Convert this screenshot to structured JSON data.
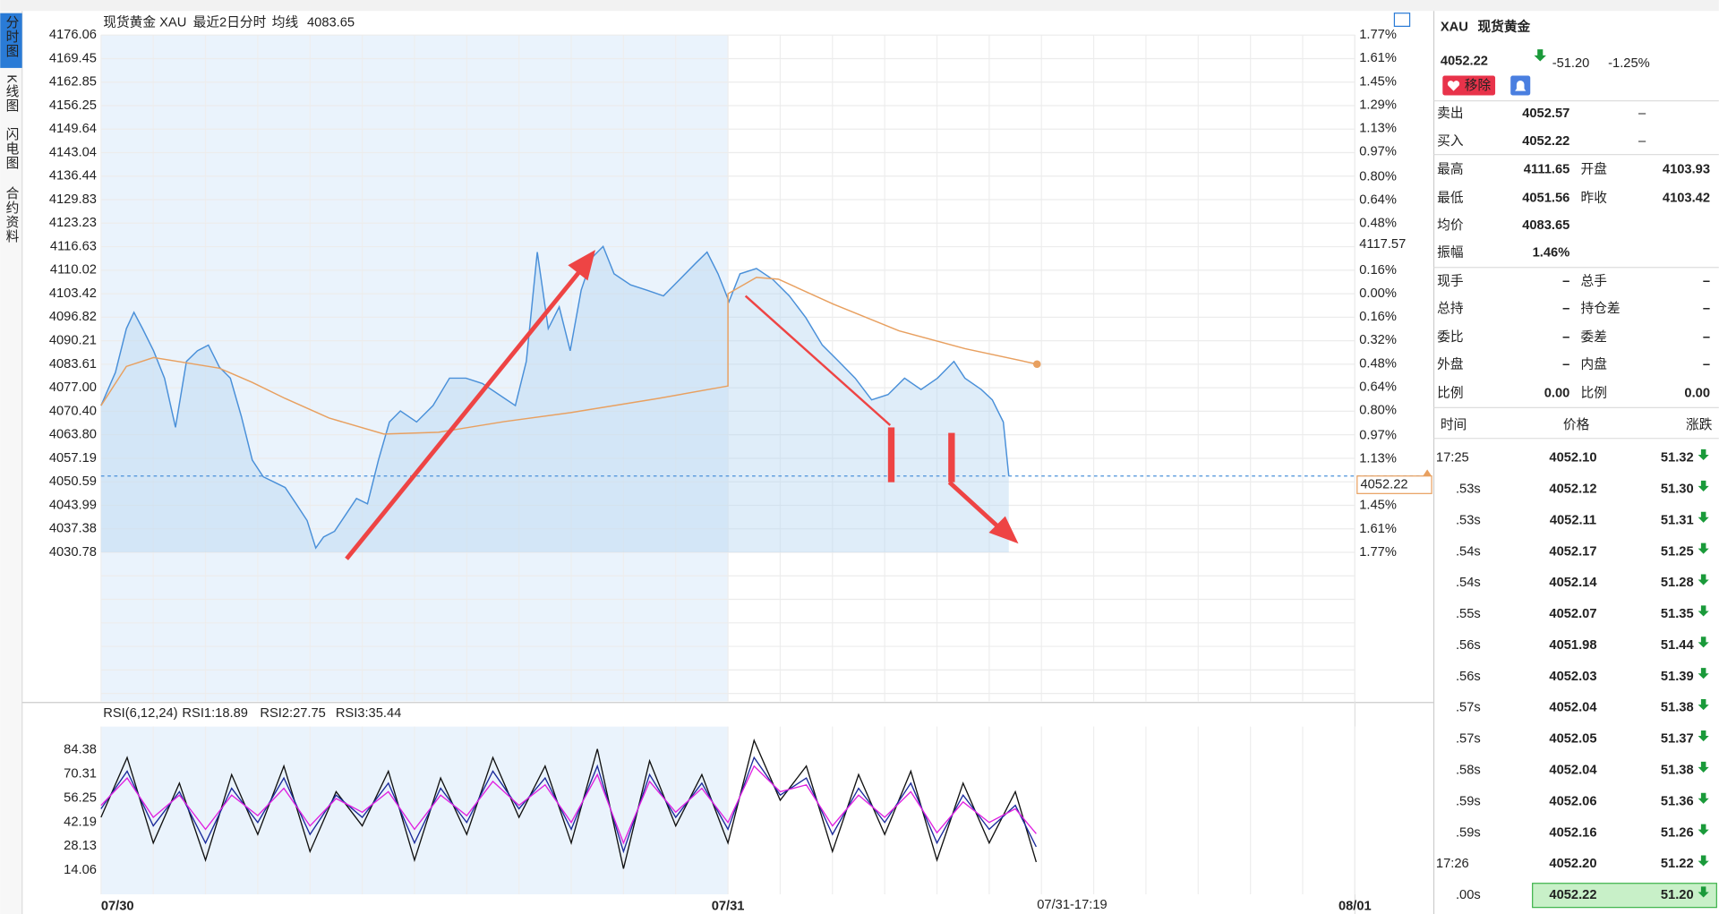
{
  "tabs": [
    "分时图",
    "K线图",
    "闪电图",
    "合约资料"
  ],
  "chart_data": [
    {
      "type": "line",
      "title": "现货黄金 XAU",
      "series": [
        {
          "name": "最近2日分时",
          "color": "#4a90d9",
          "x": [
            0,
            0.55,
            0.97,
            1.26,
            1.59,
            2.01,
            2.43,
            2.85,
            3.27,
            3.69,
            4.11,
            4.53,
            4.95,
            5.37,
            5.79,
            6.21,
            6.63,
            7.05,
            7.47,
            7.89,
            8.22,
            8.52,
            8.94,
            9.36,
            9.78,
            10.2,
            10.62,
            11.04,
            11.46,
            12.08,
            12.71,
            13.34,
            13.97,
            14.6,
            15.23,
            15.86,
            16.28,
            16.7,
            17.12,
            17.54,
            17.96,
            18.38,
            18.8,
            19.22,
            19.64,
            20.27,
            20.9,
            21.53,
            22.15,
            22.78,
            23.2,
            23.62,
            24.04,
            24.46,
            25.09,
            25.72,
            26.35,
            26.98,
            27.61,
            28.24,
            28.87,
            29.5,
            30.13,
            30.76,
            31.39,
            32.02,
            32.65,
            33.07,
            33.7,
            34.12,
            34.54,
            34.75
          ],
          "values": [
            4072.0,
            4081.3,
            4093.6,
            4098.2,
            4093.6,
            4087.4,
            4079.7,
            4065.9,
            4084.4,
            4087.4,
            4089.0,
            4082.8,
            4079.7,
            4069.0,
            4056.7,
            4052.0,
            4050.5,
            4049.0,
            4044.4,
            4039.7,
            4032.0,
            4035.1,
            4036.7,
            4041.3,
            4045.9,
            4044.4,
            4056.7,
            4067.4,
            4070.5,
            4067.4,
            4072.0,
            4079.7,
            4079.7,
            4078.2,
            4075.1,
            4072.0,
            4084.4,
            4115.1,
            4093.6,
            4099.7,
            4087.4,
            4104.4,
            4113.6,
            4116.7,
            4109.0,
            4105.9,
            4104.4,
            4102.8,
            4107.4,
            4112.1,
            4115.1,
            4109.0,
            4101.2,
            4109.0,
            4110.5,
            4107.4,
            4102.8,
            4096.7,
            4089.0,
            4084.4,
            4079.7,
            4073.6,
            4075.1,
            4079.7,
            4076.5,
            4079.7,
            4084.4,
            4079.7,
            4076.5,
            4073.6,
            4067.4,
            4052.2
          ]
        },
        {
          "name": "均线",
          "color": "#e8a060",
          "legend_value": "4083.65",
          "x": [
            0,
            0.97,
            2.01,
            3.27,
            4.53,
            5.79,
            7.05,
            8.73,
            10.83,
            12.92,
            15.44,
            17.96,
            21.32,
            24.0,
            24.0,
            25.09,
            25.93,
            28.03,
            30.55,
            33.07,
            35.83
          ],
          "values": [
            4072.0,
            4083.0,
            4085.5,
            4084.0,
            4082.5,
            4078.5,
            4074.0,
            4068.5,
            4064.0,
            4064.5,
            4067.5,
            4070.0,
            4074.0,
            4077.5,
            4103.4,
            4108.0,
            4107.5,
            4100.5,
            4093.0,
            4088.0,
            4083.65
          ]
        }
      ],
      "xlim": [
        0,
        48
      ],
      "xticks": [
        {
          "value": 0,
          "label": "07/30"
        },
        {
          "value": 24,
          "label": "07/31"
        },
        {
          "value": 48,
          "label": "08/01"
        }
      ],
      "ylim": [
        4030.78,
        4176.06
      ],
      "yticks": [
        4176.06,
        4169.45,
        4162.85,
        4156.25,
        4149.64,
        4143.04,
        4136.44,
        4129.83,
        4123.23,
        4116.63,
        4110.02,
        4103.42,
        4096.82,
        4090.21,
        4083.61,
        {
          "value": 4077,
          "label": "4077.00"
        },
        {
          "value": 4070.4,
          "label": "4070.40"
        },
        {
          "value": 4063.8,
          "label": "4063.80"
        },
        4057.19,
        4050.59,
        4043.99,
        4037.38,
        4030.78
      ],
      "y2lim": [
        -1.77,
        1.77
      ],
      "y2ticks": [
        {
          "value": 1.77,
          "label": "1.77%"
        },
        {
          "value": 1.61,
          "label": "1.61%"
        },
        {
          "value": 1.45,
          "label": "1.45%"
        },
        {
          "value": 1.29,
          "label": "1.29%"
        },
        {
          "value": 1.13,
          "label": "1.13%"
        },
        {
          "value": 0.97,
          "label": "0.97%"
        },
        {
          "value": 0.8,
          "label": "0.80%"
        },
        {
          "value": 0.64,
          "label": "0.64%"
        },
        {
          "value": 0.48,
          "label": "0.48%"
        },
        {
          "value": 0.32,
          "label": "0.32%"
        },
        {
          "value": 0.16,
          "label": "0.16%"
        },
        {
          "value": 0,
          "label": "0.00%"
        },
        {
          "value": -0.16,
          "label": "0.16%"
        },
        {
          "value": -0.32,
          "label": "0.32%"
        },
        {
          "value": -0.48,
          "label": "0.48%"
        },
        {
          "value": -0.64,
          "label": "0.64%"
        },
        {
          "value": -0.8,
          "label": "0.80%"
        },
        {
          "value": -0.97,
          "label": "0.97%"
        },
        {
          "value": -1.13,
          "label": "1.13%"
        },
        {
          "value": -1.29,
          "label": "1.29%"
        },
        {
          "value": -1.45,
          "label": "1.45%"
        },
        {
          "value": -1.61,
          "label": "1.61%"
        },
        {
          "value": -1.77,
          "label": "1.77%"
        }
      ],
      "grid": true,
      "current_price": {
        "value": 4052.22,
        "label": "4052.22"
      },
      "marker": {
        "value": 4117.57,
        "label": "4117.57"
      },
      "x_end_label": "07/31-17:19"
    },
    {
      "type": "line",
      "title": "RSI(6,12,24)",
      "x": [
        0,
        1,
        2,
        3,
        4,
        5,
        6,
        7,
        8,
        9,
        10,
        11,
        12,
        13,
        14,
        15,
        16,
        17,
        18,
        19,
        20,
        21,
        22,
        23,
        24,
        25,
        26,
        27,
        28,
        29,
        30,
        31,
        32,
        33,
        34,
        35,
        35.8
      ],
      "series": [
        {
          "name": "RSI1:18.89",
          "color": "#111111",
          "values": [
            45,
            80,
            30,
            65,
            20,
            70,
            35,
            75,
            25,
            60,
            40,
            72,
            20,
            68,
            35,
            80,
            45,
            75,
            30,
            85,
            15,
            78,
            40,
            70,
            30,
            90,
            55,
            75,
            25,
            70,
            35,
            72,
            20,
            65,
            30,
            60,
            18.89
          ]
        },
        {
          "name": "RSI2:27.75",
          "color": "#1a2a9a",
          "values": [
            50,
            72,
            40,
            60,
            30,
            62,
            42,
            68,
            35,
            58,
            45,
            65,
            30,
            62,
            42,
            72,
            50,
            68,
            38,
            75,
            25,
            70,
            45,
            65,
            38,
            80,
            58,
            68,
            35,
            62,
            42,
            65,
            30,
            58,
            38,
            52,
            27.75
          ]
        },
        {
          "name": "RSI3:35.44",
          "color": "#e020e0",
          "values": [
            52,
            68,
            45,
            58,
            38,
            58,
            46,
            62,
            40,
            56,
            48,
            60,
            38,
            58,
            46,
            66,
            52,
            64,
            42,
            70,
            30,
            66,
            48,
            62,
            42,
            75,
            60,
            64,
            40,
            58,
            45,
            60,
            36,
            54,
            42,
            50,
            35.44
          ]
        }
      ],
      "xlim": [
        0,
        48
      ],
      "ylim": [
        0,
        100
      ],
      "yticks": [
        84.38,
        70.31,
        56.25,
        42.19,
        28.13,
        14.06
      ]
    }
  ],
  "quote_panel": {
    "symbol": "XAU",
    "name": "现货黄金",
    "price": "4052.22",
    "change": "-51.20",
    "change_pct": "-1.25%",
    "button": "移除",
    "fields": [
      [
        "卖出",
        "4052.57",
        "–"
      ],
      [
        "买入",
        "4052.22",
        "–"
      ],
      [
        "最高",
        "4111.65",
        "开盘",
        "4103.93"
      ],
      [
        "最低",
        "4051.56",
        "昨收",
        "4103.42"
      ],
      [
        "均价",
        "4083.65"
      ],
      [
        "振幅",
        "1.46%"
      ],
      [
        "现手",
        "–",
        "总手",
        "–"
      ],
      [
        "总持",
        "–",
        "持仓差",
        "–"
      ],
      [
        "委比",
        "–",
        "委差",
        "–"
      ],
      [
        "外盘",
        "–",
        "内盘",
        "–"
      ],
      [
        "比例",
        "0.00",
        "比例",
        "0.00"
      ]
    ],
    "field_colors": [
      [
        "#333",
        "#1a9a3a",
        "#333"
      ],
      [
        "#333",
        "#1a9a3a",
        "#333"
      ],
      [
        "#333",
        "#e03030",
        "#333",
        "#e03030"
      ],
      [
        "#333",
        "#1a9a3a",
        "#333",
        "#111"
      ],
      [
        "#333",
        "#1a9a3a"
      ],
      [
        "#333",
        "#111"
      ],
      [
        "#333",
        "#333",
        "#333",
        "#333"
      ],
      [
        "#333",
        "#333",
        "#333",
        "#333"
      ],
      [
        "#333",
        "#333",
        "#333",
        "#333"
      ],
      [
        "#333",
        "#e03030",
        "#333",
        "#1a9a3a"
      ],
      [
        "#333",
        "#111",
        "#333",
        "#111"
      ]
    ],
    "ticks_header": [
      "时间",
      "价格",
      "涨跌"
    ],
    "ticks": [
      [
        "17:25",
        "4052.10",
        "51.32"
      ],
      [
        ".53s",
        "4052.12",
        "51.30"
      ],
      [
        ".53s",
        "4052.11",
        "51.31"
      ],
      [
        ".54s",
        "4052.17",
        "51.25"
      ],
      [
        ".54s",
        "4052.14",
        "51.28"
      ],
      [
        ".55s",
        "4052.07",
        "51.35"
      ],
      [
        ".56s",
        "4051.98",
        "51.44"
      ],
      [
        ".56s",
        "4052.03",
        "51.39"
      ],
      [
        ".57s",
        "4052.04",
        "51.38"
      ],
      [
        ".57s",
        "4052.05",
        "51.37"
      ],
      [
        ".58s",
        "4052.04",
        "51.38"
      ],
      [
        ".59s",
        "4052.06",
        "51.36"
      ],
      [
        ".59s",
        "4052.16",
        "51.26"
      ],
      [
        "17:26",
        "4052.20",
        "51.22"
      ],
      [
        ".00s",
        "4052.22",
        "51.20"
      ]
    ]
  }
}
